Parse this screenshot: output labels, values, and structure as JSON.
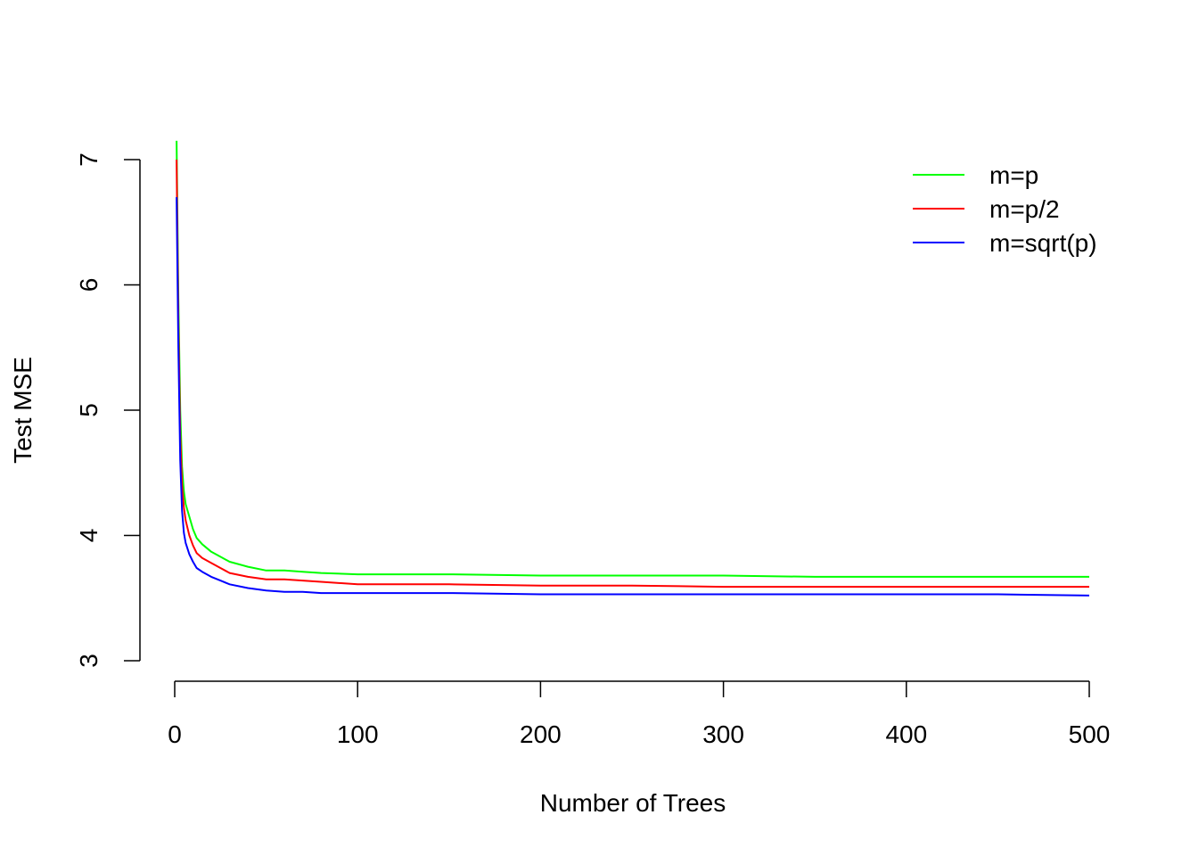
{
  "chart_data": {
    "type": "line",
    "title": "",
    "xlabel": "Number of Trees",
    "ylabel": "Test MSE",
    "xlim": [
      0,
      500
    ],
    "ylim": [
      3,
      7
    ],
    "x_ticks": [
      "0",
      "100",
      "200",
      "300",
      "400",
      "500"
    ],
    "y_ticks": [
      "3",
      "4",
      "5",
      "6",
      "7"
    ],
    "grid": false,
    "legend_position": "top-right",
    "x": [
      1,
      2,
      3,
      4,
      5,
      6,
      8,
      10,
      12,
      15,
      20,
      25,
      30,
      40,
      50,
      60,
      70,
      80,
      100,
      130,
      150,
      200,
      250,
      300,
      350,
      400,
      450,
      500
    ],
    "series": [
      {
        "name": "m=p",
        "color": "#00ff00",
        "values": [
          7.15,
          5.9,
          5.0,
          4.55,
          4.35,
          4.25,
          4.15,
          4.05,
          3.98,
          3.93,
          3.87,
          3.83,
          3.79,
          3.75,
          3.72,
          3.72,
          3.71,
          3.7,
          3.69,
          3.69,
          3.69,
          3.68,
          3.68,
          3.68,
          3.67,
          3.67,
          3.67,
          3.67
        ]
      },
      {
        "name": "m=p/2",
        "color": "#ff0000",
        "values": [
          7.0,
          5.7,
          4.8,
          4.4,
          4.22,
          4.12,
          4.0,
          3.92,
          3.86,
          3.82,
          3.78,
          3.74,
          3.7,
          3.67,
          3.65,
          3.65,
          3.64,
          3.63,
          3.61,
          3.61,
          3.61,
          3.6,
          3.6,
          3.59,
          3.59,
          3.59,
          3.59,
          3.59
        ]
      },
      {
        "name": "m=sqrt(p)",
        "color": "#0000ff",
        "values": [
          6.7,
          5.5,
          4.6,
          4.2,
          4.02,
          3.94,
          3.85,
          3.79,
          3.74,
          3.71,
          3.67,
          3.64,
          3.61,
          3.58,
          3.56,
          3.55,
          3.55,
          3.54,
          3.54,
          3.54,
          3.54,
          3.53,
          3.53,
          3.53,
          3.53,
          3.53,
          3.53,
          3.52
        ]
      }
    ]
  }
}
